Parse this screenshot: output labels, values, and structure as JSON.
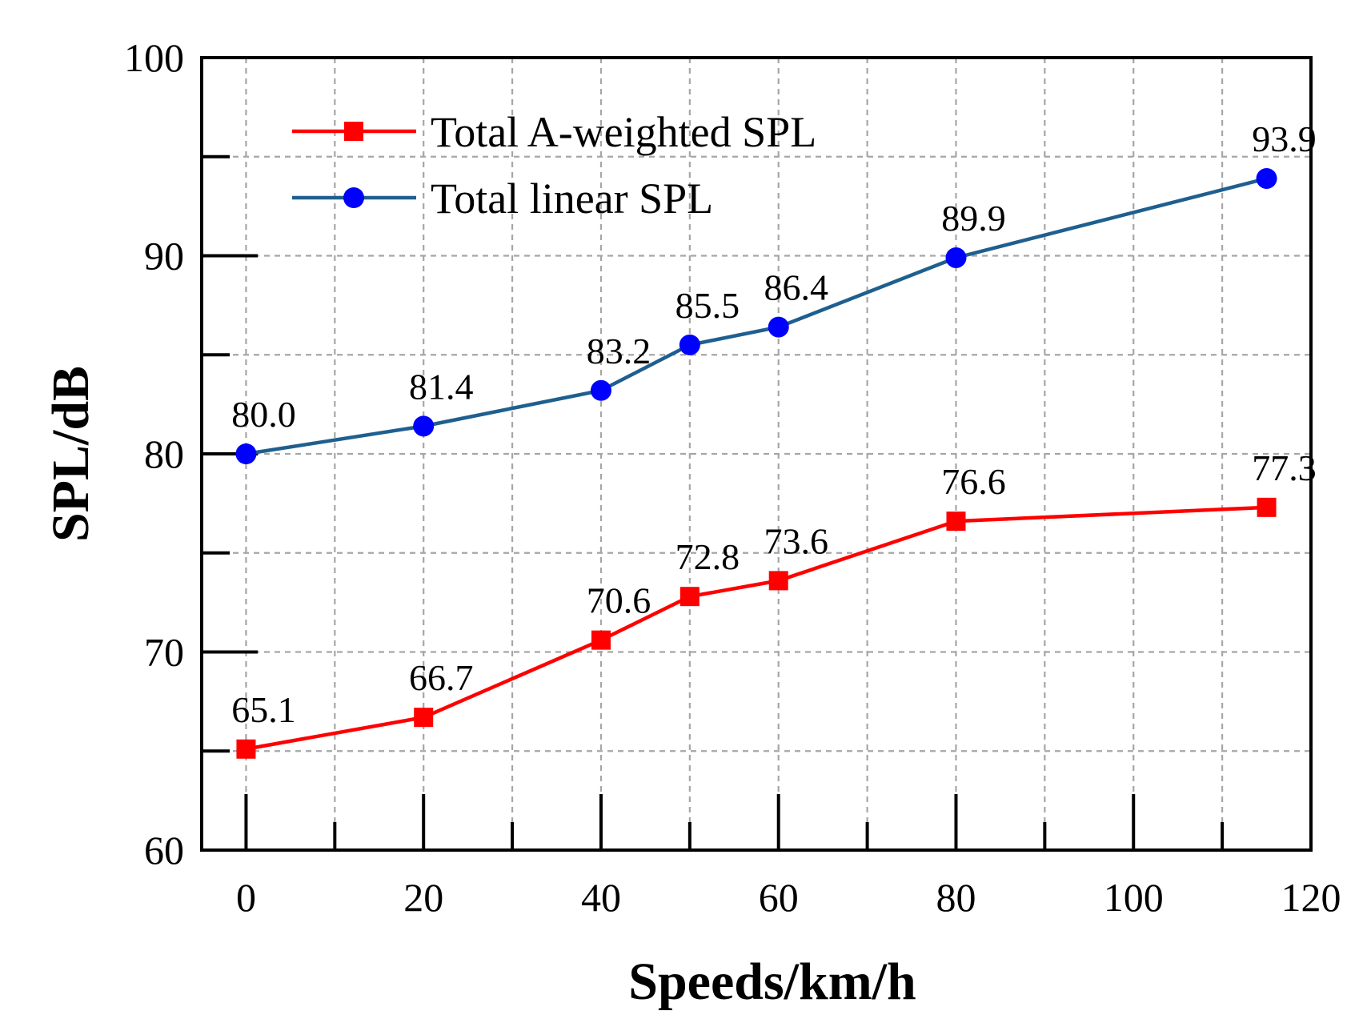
{
  "chart_data": {
    "type": "line",
    "title": "",
    "xlabel": "Speeds/km/h",
    "ylabel": "SPL/dB",
    "xlim": [
      -5,
      120
    ],
    "ylim": [
      60,
      100
    ],
    "x_ticks": [
      0,
      20,
      40,
      60,
      80,
      100,
      120
    ],
    "x_minor_ticks": [
      10,
      30,
      50,
      70,
      90,
      110
    ],
    "y_ticks": [
      60,
      70,
      80,
      90,
      100
    ],
    "y_minor_ticks": [
      65,
      75,
      85,
      95
    ],
    "x_tick_labels": [
      "0",
      "20",
      "40",
      "60",
      "80",
      "100",
      "120"
    ],
    "y_tick_labels": [
      "60",
      "70",
      "80",
      "90",
      "100"
    ],
    "grid": true,
    "legend_position": "top-left",
    "x": [
      0,
      20,
      40,
      50,
      60,
      80,
      115
    ],
    "series": [
      {
        "name": "Total A-weighted SPL",
        "marker": "square",
        "color": "#ff0000",
        "marker_color": "#ff0000",
        "values": [
          65.1,
          66.7,
          70.6,
          72.8,
          73.6,
          76.6,
          77.3
        ],
        "labels": [
          "65.1",
          "66.7",
          "70.6",
          "72.8",
          "73.6",
          "76.6",
          "77.3"
        ]
      },
      {
        "name": "Total linear SPL",
        "marker": "circle",
        "color": "#1f5f8f",
        "marker_color": "#0000ff",
        "values": [
          80.0,
          81.4,
          83.2,
          85.5,
          86.4,
          89.9,
          93.9
        ],
        "labels": [
          "80.0",
          "81.4",
          "83.2",
          "85.5",
          "86.4",
          "89.9",
          "93.9"
        ]
      }
    ]
  }
}
